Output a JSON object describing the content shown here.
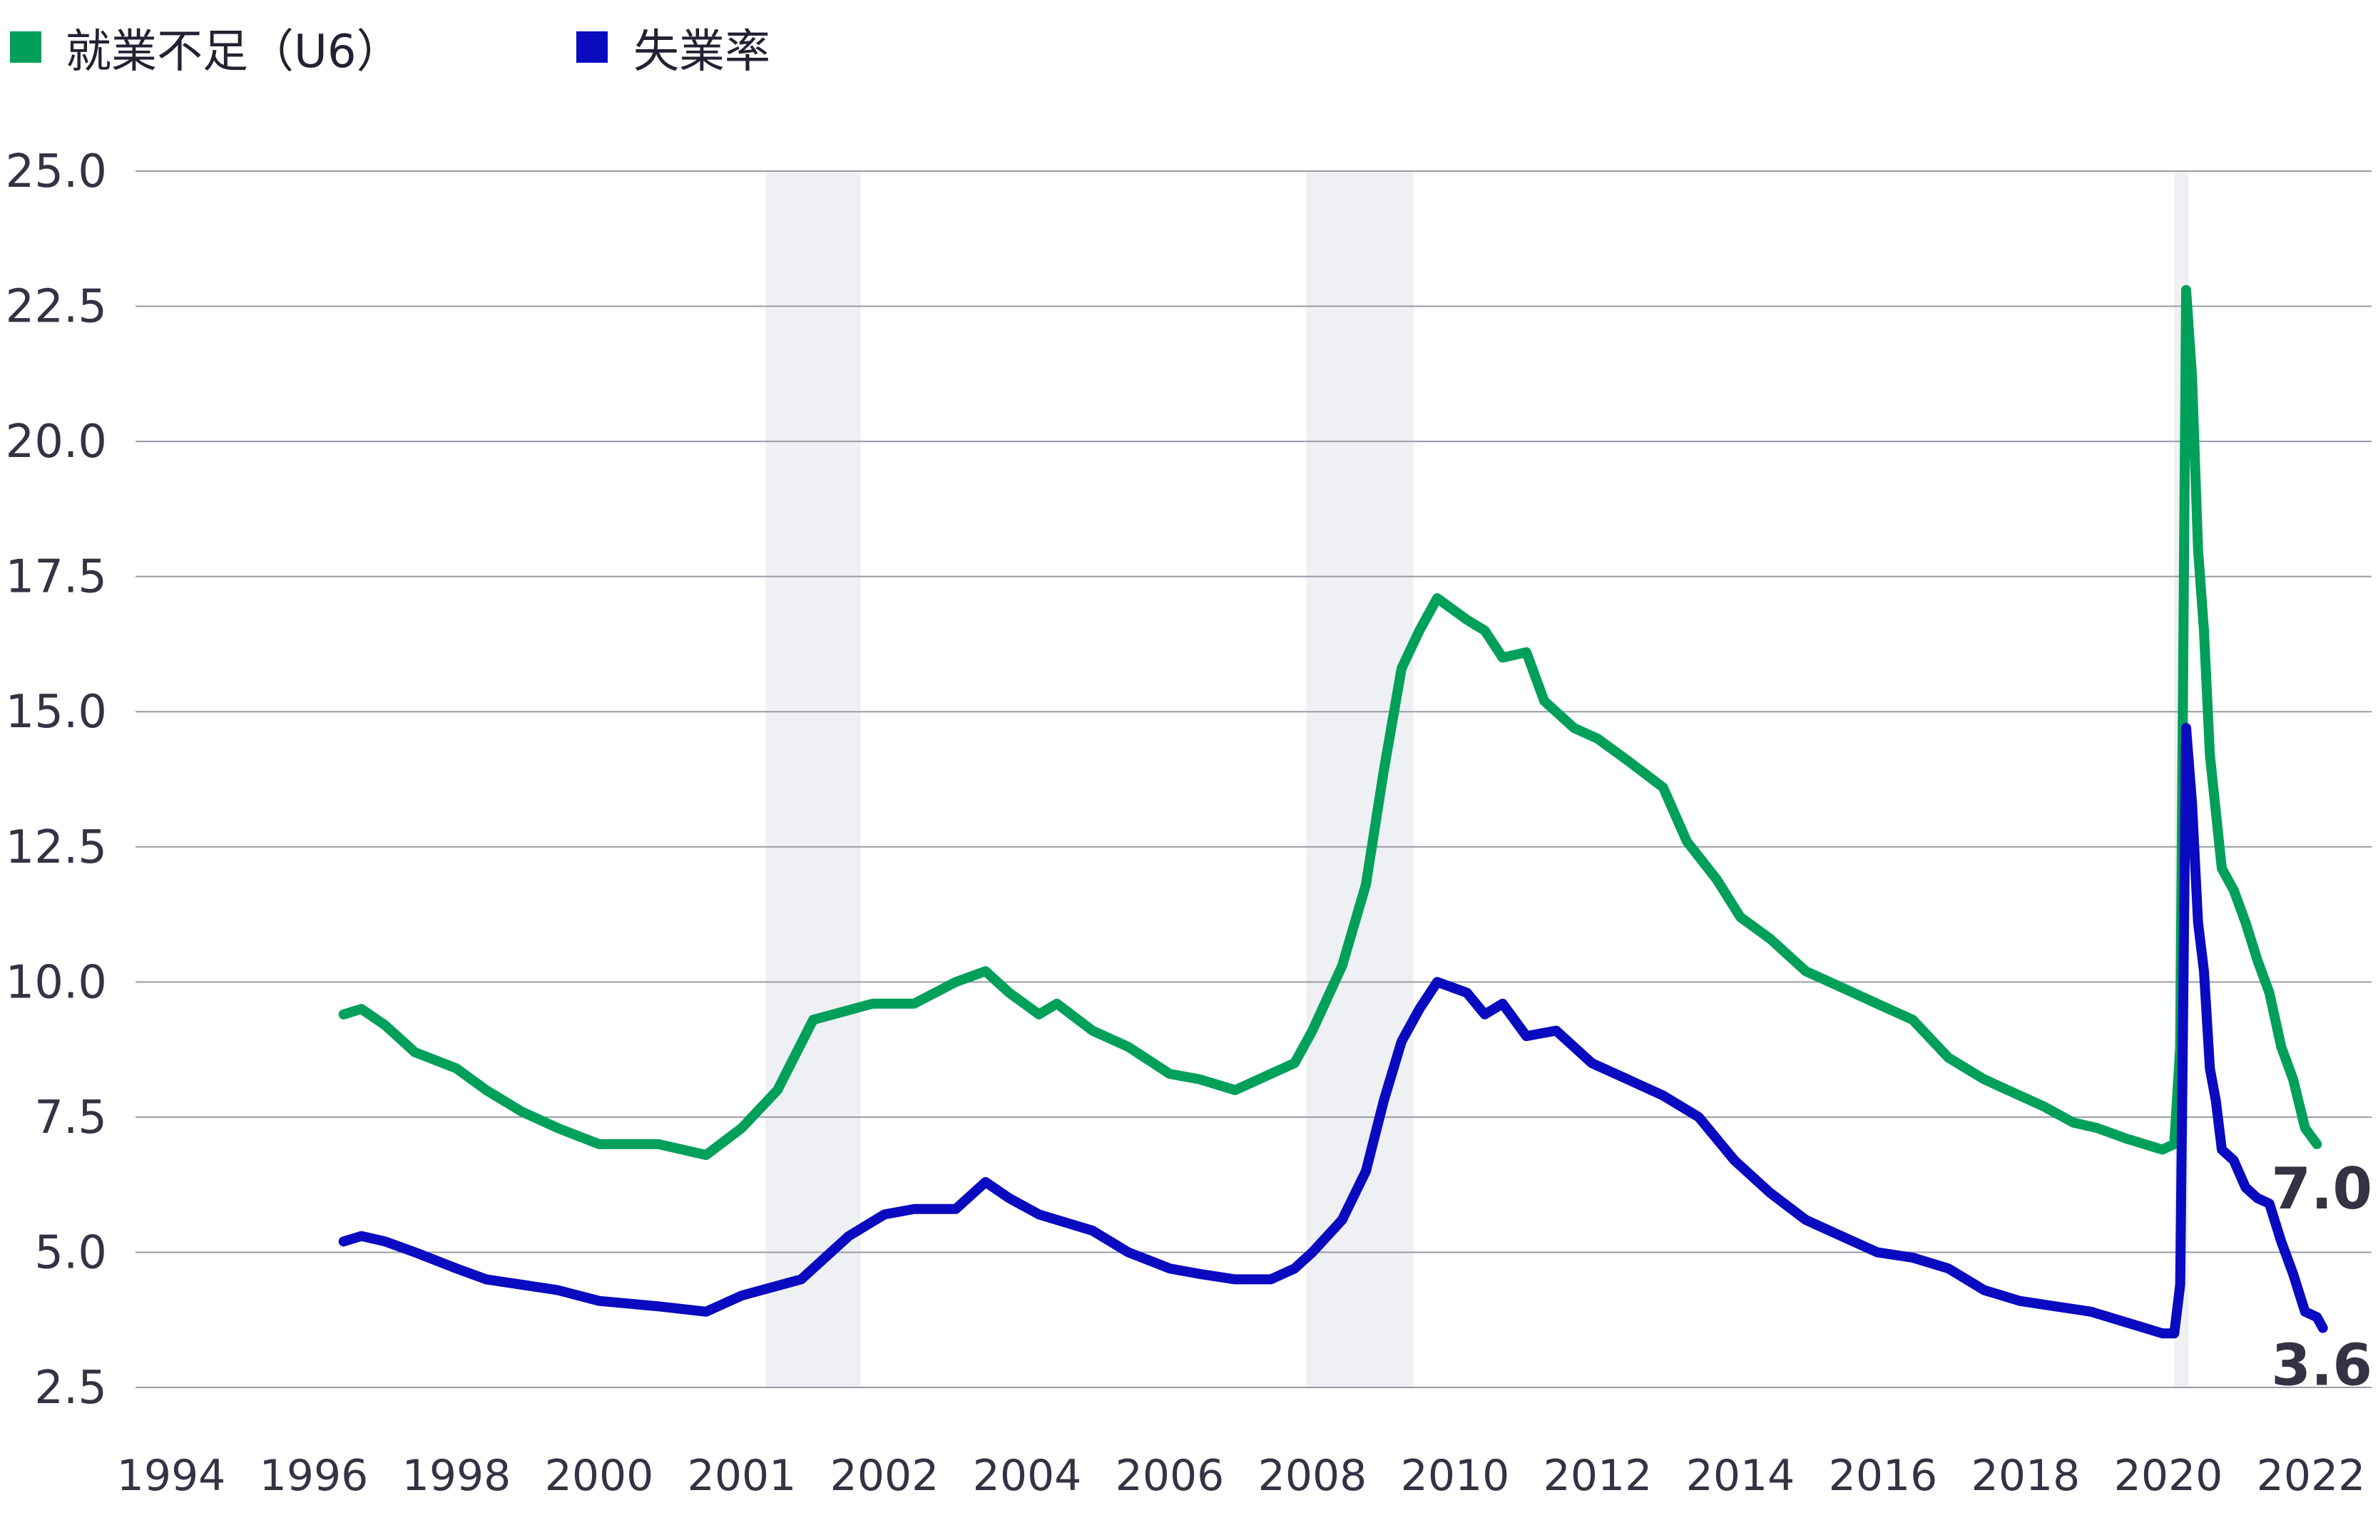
{
  "chart_data": {
    "type": "line",
    "legend": {
      "placement": "top-left",
      "items": [
        {
          "label": "就業不足（U6）",
          "color": "#00a05a"
        },
        {
          "label": "失業率",
          "color": "#0a0ac0"
        }
      ]
    },
    "ylim": [
      2.5,
      25.0
    ],
    "y_ticks": [
      "2.5",
      "5.0",
      "7.5",
      "10.0",
      "12.5",
      "15.0",
      "17.5",
      "20.0",
      "22.5",
      "25.0"
    ],
    "x_ticks": [
      "1994",
      "1996",
      "1998",
      "2000",
      "2001",
      "2002",
      "2004",
      "2006",
      "2008",
      "2010",
      "2012",
      "2014",
      "2016",
      "2018",
      "2020",
      "2022"
    ],
    "grid": "horizontal",
    "shaded_periods": [
      {
        "start": "2001-03",
        "end": "2001-11"
      },
      {
        "start": "2007-12",
        "end": "2009-06"
      },
      {
        "start": "2020-02",
        "end": "2020-04"
      }
    ],
    "end_labels": [
      "7.0",
      "3.6"
    ],
    "series": [
      {
        "name": "就業不足（U6）",
        "color": "#00a05a",
        "points": [
          [
            "1996-06",
            9.4
          ],
          [
            "1996-09",
            9.5
          ],
          [
            "1997-01",
            9.2
          ],
          [
            "1997-06",
            8.7
          ],
          [
            "1998-01",
            8.4
          ],
          [
            "1998-06",
            8.0
          ],
          [
            "1998-12",
            7.6
          ],
          [
            "1999-06",
            7.3
          ],
          [
            "2000-01",
            7.0
          ],
          [
            "2000-06",
            7.0
          ],
          [
            "2000-10",
            6.8
          ],
          [
            "2001-01",
            7.3
          ],
          [
            "2001-04",
            8.0
          ],
          [
            "2001-07",
            9.3
          ],
          [
            "2001-12",
            9.6
          ],
          [
            "2002-06",
            9.6
          ],
          [
            "2003-01",
            10.0
          ],
          [
            "2003-06",
            10.2
          ],
          [
            "2003-10",
            9.8
          ],
          [
            "2004-03",
            9.4
          ],
          [
            "2004-06",
            9.6
          ],
          [
            "2004-12",
            9.1
          ],
          [
            "2005-06",
            8.8
          ],
          [
            "2006-01",
            8.3
          ],
          [
            "2006-06",
            8.2
          ],
          [
            "2006-12",
            8.0
          ],
          [
            "2007-06",
            8.3
          ],
          [
            "2007-10",
            8.5
          ],
          [
            "2008-01",
            9.1
          ],
          [
            "2008-06",
            10.3
          ],
          [
            "2008-10",
            11.8
          ],
          [
            "2009-01",
            13.9
          ],
          [
            "2009-04",
            15.8
          ],
          [
            "2009-07",
            16.5
          ],
          [
            "2009-10",
            17.1
          ],
          [
            "2010-03",
            16.7
          ],
          [
            "2010-06",
            16.5
          ],
          [
            "2010-09",
            16.0
          ],
          [
            "2011-01",
            16.1
          ],
          [
            "2011-04",
            15.2
          ],
          [
            "2011-09",
            14.7
          ],
          [
            "2012-01",
            14.5
          ],
          [
            "2012-06",
            14.1
          ],
          [
            "2012-12",
            13.6
          ],
          [
            "2013-04",
            12.6
          ],
          [
            "2013-09",
            11.9
          ],
          [
            "2014-01",
            11.2
          ],
          [
            "2014-06",
            10.8
          ],
          [
            "2014-12",
            10.2
          ],
          [
            "2015-06",
            9.9
          ],
          [
            "2015-12",
            9.6
          ],
          [
            "2016-06",
            9.3
          ],
          [
            "2016-12",
            8.6
          ],
          [
            "2017-06",
            8.2
          ],
          [
            "2017-12",
            7.9
          ],
          [
            "2018-04",
            7.7
          ],
          [
            "2018-09",
            7.4
          ],
          [
            "2019-01",
            7.3
          ],
          [
            "2019-06",
            7.1
          ],
          [
            "2019-12",
            6.9
          ],
          [
            "2020-02",
            7.0
          ],
          [
            "2020-03",
            8.8
          ],
          [
            "2020-04",
            22.8
          ],
          [
            "2020-05",
            21.2
          ],
          [
            "2020-06",
            18.0
          ],
          [
            "2020-07",
            16.5
          ],
          [
            "2020-08",
            14.2
          ],
          [
            "2020-10",
            12.1
          ],
          [
            "2020-12",
            11.7
          ],
          [
            "2021-02",
            11.1
          ],
          [
            "2021-04",
            10.4
          ],
          [
            "2021-06",
            9.8
          ],
          [
            "2021-08",
            8.8
          ],
          [
            "2021-10",
            8.2
          ],
          [
            "2021-12",
            7.3
          ],
          [
            "2022-02",
            7.0
          ]
        ]
      },
      {
        "name": "失業率",
        "color": "#0a0ac0",
        "points": [
          [
            "1996-06",
            5.2
          ],
          [
            "1996-09",
            5.3
          ],
          [
            "1997-01",
            5.2
          ],
          [
            "1997-06",
            5.0
          ],
          [
            "1998-01",
            4.7
          ],
          [
            "1998-06",
            4.5
          ],
          [
            "1998-12",
            4.4
          ],
          [
            "1999-06",
            4.3
          ],
          [
            "2000-01",
            4.1
          ],
          [
            "2000-06",
            4.0
          ],
          [
            "2000-10",
            3.9
          ],
          [
            "2001-01",
            4.2
          ],
          [
            "2001-06",
            4.5
          ],
          [
            "2001-10",
            5.3
          ],
          [
            "2002-01",
            5.7
          ],
          [
            "2002-06",
            5.8
          ],
          [
            "2003-01",
            5.8
          ],
          [
            "2003-06",
            6.3
          ],
          [
            "2003-10",
            6.0
          ],
          [
            "2004-03",
            5.7
          ],
          [
            "2004-12",
            5.4
          ],
          [
            "2005-06",
            5.0
          ],
          [
            "2006-01",
            4.7
          ],
          [
            "2006-06",
            4.6
          ],
          [
            "2006-12",
            4.5
          ],
          [
            "2007-06",
            4.5
          ],
          [
            "2007-10",
            4.7
          ],
          [
            "2008-01",
            5.0
          ],
          [
            "2008-06",
            5.6
          ],
          [
            "2008-10",
            6.5
          ],
          [
            "2009-01",
            7.8
          ],
          [
            "2009-04",
            8.9
          ],
          [
            "2009-07",
            9.5
          ],
          [
            "2009-10",
            10.0
          ],
          [
            "2010-03",
            9.8
          ],
          [
            "2010-06",
            9.4
          ],
          [
            "2010-09",
            9.6
          ],
          [
            "2011-01",
            9.0
          ],
          [
            "2011-06",
            9.1
          ],
          [
            "2011-12",
            8.5
          ],
          [
            "2012-06",
            8.2
          ],
          [
            "2012-12",
            7.9
          ],
          [
            "2013-06",
            7.5
          ],
          [
            "2013-12",
            6.7
          ],
          [
            "2014-06",
            6.1
          ],
          [
            "2014-12",
            5.6
          ],
          [
            "2015-06",
            5.3
          ],
          [
            "2015-12",
            5.0
          ],
          [
            "2016-06",
            4.9
          ],
          [
            "2016-12",
            4.7
          ],
          [
            "2017-06",
            4.3
          ],
          [
            "2017-12",
            4.1
          ],
          [
            "2018-06",
            4.0
          ],
          [
            "2018-12",
            3.9
          ],
          [
            "2019-06",
            3.7
          ],
          [
            "2019-12",
            3.5
          ],
          [
            "2020-02",
            3.5
          ],
          [
            "2020-03",
            4.4
          ],
          [
            "2020-04",
            14.7
          ],
          [
            "2020-05",
            13.3
          ],
          [
            "2020-06",
            11.1
          ],
          [
            "2020-07",
            10.2
          ],
          [
            "2020-08",
            8.4
          ],
          [
            "2020-09",
            7.8
          ],
          [
            "2020-10",
            6.9
          ],
          [
            "2020-12",
            6.7
          ],
          [
            "2021-02",
            6.2
          ],
          [
            "2021-04",
            6.0
          ],
          [
            "2021-06",
            5.9
          ],
          [
            "2021-08",
            5.2
          ],
          [
            "2021-10",
            4.6
          ],
          [
            "2021-12",
            3.9
          ],
          [
            "2022-02",
            3.8
          ],
          [
            "2022-03",
            3.6
          ]
        ]
      }
    ]
  }
}
